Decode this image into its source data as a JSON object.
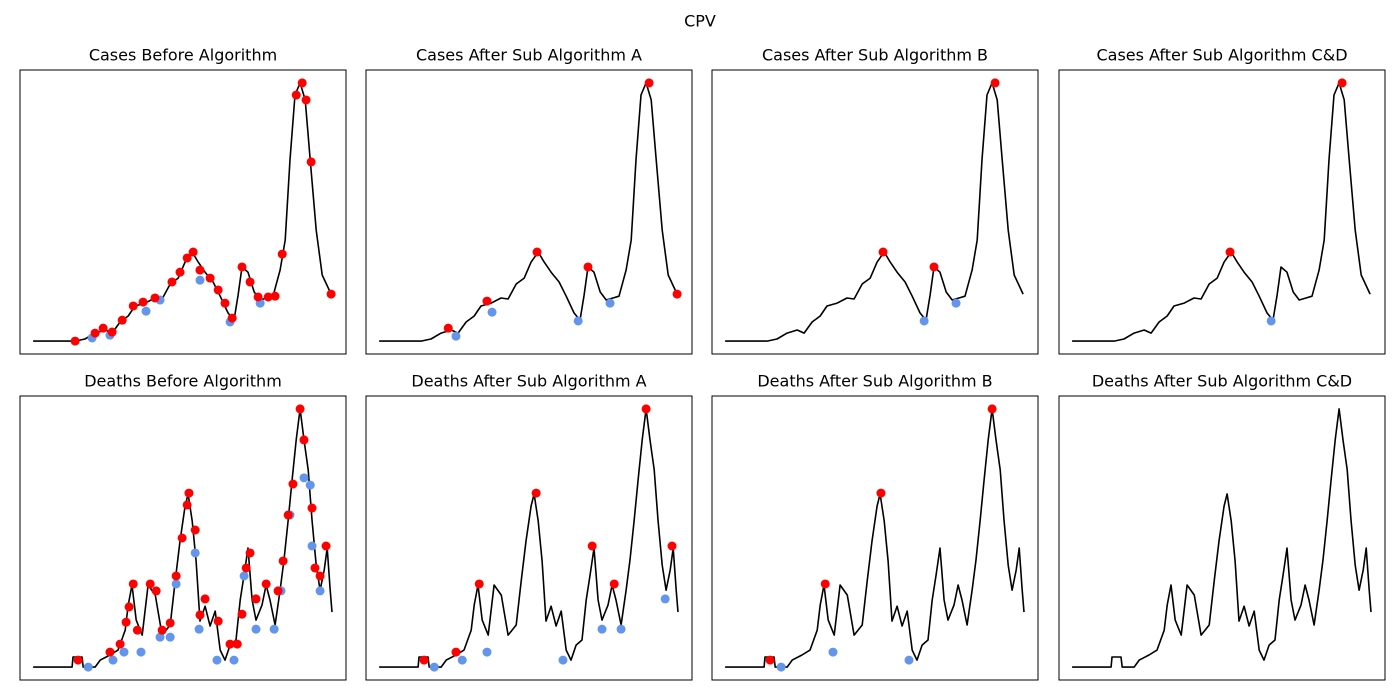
{
  "title": "CPV",
  "chart_data": [
    {
      "type": "line",
      "title": "Cases Before Algorithm",
      "color": "#000000",
      "xlim": [
        -4.4,
        105
      ],
      "ylim": [
        -5,
        105
      ],
      "x": [
        0,
        14.1,
        17.4,
        20.8,
        24.2,
        26.5,
        29.2,
        31.9,
        34.2,
        37.6,
        40.9,
        43.3,
        46,
        48.7,
        51,
        53.4,
        55.4,
        57.7,
        60.4,
        62.8,
        65.4,
        67.4,
        68.8,
        70.1,
        72.1,
        74.2,
        76.2,
        78.5,
        80.5,
        82.9,
        84.6,
        86.2,
        87.9,
        89.6,
        91.3,
        93,
        95,
        97,
        100
      ],
      "values": [
        0,
        0,
        0.8,
        3.1,
        4.3,
        3.1,
        7.4,
        9.7,
        13.6,
        14.7,
        16.7,
        16.3,
        22.1,
        24.4,
        30.6,
        34.5,
        30.6,
        26.7,
        22.9,
        17.4,
        10.9,
        8.1,
        17.8,
        28.7,
        26.7,
        19,
        15.9,
        16.7,
        17.4,
        27.5,
        39.1,
        70.2,
        95.3,
        100,
        93.4,
        70.2,
        43,
        25.6,
        18.2
      ],
      "troughs": {
        "color": "#6495ed",
        "x": [
          19.8,
          25.8,
          37.9,
          42.6,
          56,
          66.1,
          76.2
        ],
        "values": [
          1.2,
          2.3,
          11.6,
          15.9,
          23.6,
          7.4,
          14.7
        ]
      },
      "peaks": {
        "color": "#ff0000",
        "x": [
          14.1,
          20.8,
          23.5,
          26.5,
          29.9,
          33.6,
          36.9,
          40.9,
          46.6,
          49.3,
          51.7,
          53.7,
          56,
          59.4,
          62.1,
          64.4,
          66.8,
          70.1,
          72.8,
          75.5,
          78.9,
          81.2,
          83.6,
          88.3,
          90.3,
          91.6,
          93.3,
          100
        ],
        "values": [
          0,
          3.1,
          5,
          3.5,
          8.1,
          13.6,
          15.1,
          16.7,
          22.9,
          26.7,
          32.2,
          34.5,
          27.5,
          24.4,
          19.8,
          14.7,
          8.9,
          28.7,
          22.9,
          17.1,
          17.1,
          17.4,
          33.7,
          95.3,
          100,
          93.4,
          69.4,
          18.2
        ]
      }
    },
    {
      "type": "line",
      "title": "Cases After Sub Algorithm A",
      "color": "#000000",
      "xlim": [
        -4.4,
        105
      ],
      "ylim": [
        -5,
        105
      ],
      "x": [
        0,
        14.1,
        17.4,
        20.8,
        24.2,
        26.5,
        29.2,
        31.9,
        34.2,
        37.6,
        40.9,
        43.3,
        46,
        48.7,
        51,
        53.4,
        55.4,
        57.7,
        60.4,
        62.8,
        65.4,
        67.4,
        68.8,
        70.1,
        72.1,
        74.2,
        76.2,
        78.5,
        80.5,
        82.9,
        84.6,
        86.2,
        87.9,
        89.6,
        91.3,
        93,
        95,
        97,
        100
      ],
      "values": [
        0,
        0,
        0.8,
        3.1,
        4.3,
        3.1,
        7.4,
        9.7,
        13.6,
        14.7,
        16.7,
        16.3,
        22.1,
        24.4,
        30.6,
        34.5,
        30.6,
        26.7,
        22.9,
        17.4,
        10.9,
        8.1,
        17.8,
        28.7,
        26.7,
        19,
        15.9,
        16.7,
        17.4,
        27.5,
        39.1,
        70.2,
        95.3,
        100,
        93.4,
        70.2,
        43,
        25.6,
        18.2
      ],
      "troughs": {
        "color": "#6495ed",
        "x": [
          25.8,
          37.9,
          66.8,
          77.5
        ],
        "values": [
          1.9,
          11.2,
          7.8,
          14.7
        ]
      },
      "peaks": {
        "color": "#ff0000",
        "x": [
          23.2,
          36.2,
          53,
          70.1,
          90.6,
          100
        ],
        "values": [
          5,
          15.5,
          34.5,
          28.7,
          100,
          18.2
        ]
      }
    },
    {
      "type": "line",
      "title": "Cases After Sub Algorithm B",
      "color": "#000000",
      "xlim": [
        -4.4,
        105
      ],
      "ylim": [
        -5,
        105
      ],
      "x": [
        0,
        14.1,
        17.4,
        20.8,
        24.2,
        26.5,
        29.2,
        31.9,
        34.2,
        37.6,
        40.9,
        43.3,
        46,
        48.7,
        51,
        53.4,
        55.4,
        57.7,
        60.4,
        62.8,
        65.4,
        67.4,
        68.8,
        70.1,
        72.1,
        74.2,
        76.2,
        78.5,
        80.5,
        82.9,
        84.6,
        86.2,
        87.9,
        89.6,
        91.3,
        93,
        95,
        97,
        100
      ],
      "values": [
        0,
        0,
        0.8,
        3.1,
        4.3,
        3.1,
        7.4,
        9.7,
        13.6,
        14.7,
        16.7,
        16.3,
        22.1,
        24.4,
        30.6,
        34.5,
        30.6,
        26.7,
        22.9,
        17.4,
        10.9,
        8.1,
        17.8,
        28.7,
        26.7,
        19,
        15.9,
        16.7,
        17.4,
        27.5,
        39.1,
        70.2,
        95.3,
        100,
        93.4,
        70.2,
        43,
        25.6,
        18.2
      ],
      "troughs": {
        "color": "#6495ed",
        "x": [
          66.8,
          77.5
        ],
        "values": [
          7.8,
          14.7
        ]
      },
      "peaks": {
        "color": "#ff0000",
        "x": [
          53,
          70.1,
          90.6
        ],
        "values": [
          34.5,
          28.7,
          100
        ]
      }
    },
    {
      "type": "line",
      "title": "Cases After Sub Algorithm C&D",
      "color": "#000000",
      "xlim": [
        -4.4,
        105
      ],
      "ylim": [
        -5,
        105
      ],
      "x": [
        0,
        14.1,
        17.4,
        20.8,
        24.2,
        26.5,
        29.2,
        31.9,
        34.2,
        37.6,
        40.9,
        43.3,
        46,
        48.7,
        51,
        53.4,
        55.4,
        57.7,
        60.4,
        62.8,
        65.4,
        67.4,
        68.8,
        70.1,
        72.1,
        74.2,
        76.2,
        78.5,
        80.5,
        82.9,
        84.6,
        86.2,
        87.9,
        89.6,
        91.3,
        93,
        95,
        97,
        100
      ],
      "values": [
        0,
        0,
        0.8,
        3.1,
        4.3,
        3.1,
        7.4,
        9.7,
        13.6,
        14.7,
        16.7,
        16.3,
        22.1,
        24.4,
        30.6,
        34.5,
        30.6,
        26.7,
        22.9,
        17.4,
        10.9,
        8.1,
        17.8,
        28.7,
        26.7,
        19,
        15.9,
        16.7,
        17.4,
        27.5,
        39.1,
        70.2,
        95.3,
        100,
        93.4,
        70.2,
        43,
        25.6,
        18.2
      ],
      "troughs": {
        "color": "#6495ed",
        "x": [
          66.8
        ],
        "values": [
          7.8
        ]
      },
      "peaks": {
        "color": "#ff0000",
        "x": [
          53,
          90.6
        ],
        "values": [
          34.5,
          100
        ]
      }
    },
    {
      "type": "line",
      "title": "Deaths Before Algorithm",
      "color": "#000000",
      "xlim": [
        -4.4,
        105
      ],
      "ylim": [
        -5,
        105
      ],
      "x": [
        0,
        13.1,
        13.4,
        16.4,
        16.8,
        20.8,
        22.5,
        25.8,
        28.5,
        30.9,
        31.9,
        33.2,
        34.6,
        36.6,
        38.6,
        41,
        43.3,
        46,
        47.7,
        49.3,
        51,
        52,
        53.4,
        54.7,
        56,
        57.7,
        59.4,
        61.1,
        62.8,
        64.4,
        66.1,
        68.1,
        69.5,
        70.8,
        72.1,
        73.5,
        74.8,
        76.8,
        78.2,
        79.5,
        81.2,
        82.9,
        84.2,
        85.6,
        86.9,
        88.3,
        89.6,
        90.9,
        92.3,
        93.6,
        95,
        96.3,
        97.7,
        98.7,
        99.7,
        100.3
      ],
      "values": [
        0,
        0,
        3.9,
        3.9,
        0,
        0,
        2.7,
        4.7,
        6.6,
        14.3,
        24,
        31.8,
        18.2,
        12.4,
        31.8,
        27.9,
        12.4,
        16.3,
        33.7,
        48.8,
        62.4,
        67.1,
        56.6,
        41.1,
        17.8,
        23.6,
        15.9,
        21.7,
        6.6,
        2.7,
        8.5,
        10.5,
        26,
        35.7,
        46.1,
        26,
        18.2,
        24,
        31.8,
        26,
        16.3,
        29.8,
        41.5,
        57,
        72.5,
        88,
        100,
        88,
        76.4,
        57,
        39.5,
        29.8,
        37.6,
        46.1,
        29.8,
        21.3
      ],
      "troughs": {
        "color": "#6495ed",
        "x": [
          18.5,
          26.8,
          30.5,
          36.2,
          42.6,
          46,
          48,
          54.4,
          55.7,
          61.7,
          67.4,
          70.8,
          74.8,
          80.9,
          83.2,
          86.2,
          90.9,
          93,
          93.6,
          96.3
        ],
        "values": [
          0,
          2.7,
          5.8,
          5.8,
          11.6,
          11.6,
          32.2,
          44.2,
          14.7,
          2.7,
          2.7,
          35.3,
          14.7,
          14.7,
          29.5,
          58.9,
          73.3,
          70.5,
          46.9,
          29.5
        ]
      },
      "peaks": {
        "color": "#ff0000",
        "x": [
          15.1,
          25.8,
          29.2,
          31.2,
          32.2,
          33.6,
          35,
          39.3,
          41.3,
          43.3,
          46,
          48,
          50,
          51.7,
          52.3,
          54.4,
          56,
          57.7,
          62.1,
          66.1,
          68.5,
          70.1,
          71.5,
          72.8,
          74.8,
          78.2,
          82.2,
          83.9,
          85.6,
          87.2,
          89.6,
          90.9,
          93.6,
          94.6,
          96.3,
          98.3
        ],
        "values": [
          2.7,
          5.8,
          8.9,
          17.4,
          23.3,
          32.2,
          14.3,
          32.2,
          29.5,
          14.3,
          17.1,
          35.3,
          50,
          62.8,
          67.4,
          53.1,
          20.2,
          26.4,
          17.8,
          8.9,
          8.9,
          20.5,
          38.4,
          44.2,
          26.4,
          32.2,
          29.5,
          41.1,
          58.9,
          70.9,
          100,
          88,
          61.6,
          38.4,
          35.3,
          46.9
        ]
      }
    },
    {
      "type": "line",
      "title": "Deaths After Sub Algorithm A",
      "color": "#000000",
      "xlim": [
        -4.4,
        105
      ],
      "ylim": [
        -5,
        105
      ],
      "x": [
        0,
        13.1,
        13.4,
        16.4,
        16.8,
        20.8,
        22.5,
        25.8,
        28.5,
        30.9,
        31.9,
        33.2,
        34.6,
        36.6,
        38.6,
        41,
        43.3,
        46,
        47.7,
        49.3,
        51,
        52,
        53.4,
        54.7,
        56,
        57.7,
        59.4,
        61.1,
        62.8,
        64.4,
        66.1,
        68.1,
        69.5,
        70.8,
        72.1,
        73.5,
        74.8,
        76.8,
        78.2,
        79.5,
        81.2,
        82.9,
        84.2,
        85.6,
        86.9,
        88.3,
        89.6,
        90.9,
        92.3,
        93.6,
        95,
        96.3,
        97.7,
        98.7,
        99.7,
        100.3
      ],
      "values": [
        0,
        0,
        3.9,
        3.9,
        0,
        0,
        2.7,
        4.7,
        6.6,
        14.3,
        24,
        31.8,
        18.2,
        12.4,
        31.8,
        27.9,
        12.4,
        16.3,
        33.7,
        48.8,
        62.4,
        67.1,
        56.6,
        41.1,
        17.8,
        23.6,
        15.9,
        21.7,
        6.6,
        2.7,
        8.5,
        10.5,
        26,
        35.7,
        46.1,
        26,
        18.2,
        24,
        31.8,
        26,
        16.3,
        29.8,
        41.5,
        57,
        72.5,
        88,
        100,
        88,
        76.4,
        57,
        39.5,
        29.8,
        37.6,
        46.1,
        29.8,
        21.3
      ],
      "troughs": {
        "color": "#6495ed",
        "x": [
          18.5,
          27.9,
          36.2,
          61.7,
          74.8,
          81.2,
          96
        ],
        "values": [
          0,
          2.7,
          5.8,
          2.7,
          14.7,
          14.7,
          26.4
        ]
      },
      "peaks": {
        "color": "#ff0000",
        "x": [
          15.1,
          25.8,
          33.6,
          52.7,
          71.5,
          78.9,
          89.6,
          98.3
        ],
        "values": [
          2.7,
          5.8,
          32.2,
          67.4,
          46.9,
          32.2,
          100,
          46.9
        ]
      }
    },
    {
      "type": "line",
      "title": "Deaths After Sub Algorithm B",
      "color": "#000000",
      "xlim": [
        -4.4,
        105
      ],
      "ylim": [
        -5,
        105
      ],
      "x": [
        0,
        13.1,
        13.4,
        16.4,
        16.8,
        20.8,
        22.5,
        25.8,
        28.5,
        30.9,
        31.9,
        33.2,
        34.6,
        36.6,
        38.6,
        41,
        43.3,
        46,
        47.7,
        49.3,
        51,
        52,
        53.4,
        54.7,
        56,
        57.7,
        59.4,
        61.1,
        62.8,
        64.4,
        66.1,
        68.1,
        69.5,
        70.8,
        72.1,
        73.5,
        74.8,
        76.8,
        78.2,
        79.5,
        81.2,
        82.9,
        84.2,
        85.6,
        86.9,
        88.3,
        89.6,
        90.9,
        92.3,
        93.6,
        95,
        96.3,
        97.7,
        98.7,
        99.7,
        100.3
      ],
      "values": [
        0,
        0,
        3.9,
        3.9,
        0,
        0,
        2.7,
        4.7,
        6.6,
        14.3,
        24,
        31.8,
        18.2,
        12.4,
        31.8,
        27.9,
        12.4,
        16.3,
        33.7,
        48.8,
        62.4,
        67.1,
        56.6,
        41.1,
        17.8,
        23.6,
        15.9,
        21.7,
        6.6,
        2.7,
        8.5,
        10.5,
        26,
        35.7,
        46.1,
        26,
        18.2,
        24,
        31.8,
        26,
        16.3,
        29.8,
        41.5,
        57,
        72.5,
        88,
        100,
        88,
        76.4,
        57,
        39.5,
        29.8,
        37.6,
        46.1,
        29.8,
        21.3
      ],
      "troughs": {
        "color": "#6495ed",
        "x": [
          18.8,
          36.2,
          61.7
        ],
        "values": [
          0,
          5.8,
          2.7
        ]
      },
      "peaks": {
        "color": "#ff0000",
        "x": [
          15.1,
          33.6,
          52.3,
          89.6
        ],
        "values": [
          2.7,
          32.2,
          67.4,
          100
        ]
      }
    },
    {
      "type": "line",
      "title": "Deaths After Sub Algorithm C&D",
      "color": "#000000",
      "xlim": [
        -4.4,
        105
      ],
      "ylim": [
        -5,
        105
      ],
      "x": [
        0,
        13.1,
        13.4,
        16.4,
        16.8,
        20.8,
        22.5,
        25.8,
        28.5,
        30.9,
        31.9,
        33.2,
        34.6,
        36.6,
        38.6,
        41,
        43.3,
        46,
        47.7,
        49.3,
        51,
        52,
        53.4,
        54.7,
        56,
        57.7,
        59.4,
        61.1,
        62.8,
        64.4,
        66.1,
        68.1,
        69.5,
        70.8,
        72.1,
        73.5,
        74.8,
        76.8,
        78.2,
        79.5,
        81.2,
        82.9,
        84.2,
        85.6,
        86.9,
        88.3,
        89.6,
        90.9,
        92.3,
        93.6,
        95,
        96.3,
        97.7,
        98.7,
        99.7,
        100.3
      ],
      "values": [
        0,
        0,
        3.9,
        3.9,
        0,
        0,
        2.7,
        4.7,
        6.6,
        14.3,
        24,
        31.8,
        18.2,
        12.4,
        31.8,
        27.9,
        12.4,
        16.3,
        33.7,
        48.8,
        62.4,
        67.1,
        56.6,
        41.1,
        17.8,
        23.6,
        15.9,
        21.7,
        6.6,
        2.7,
        8.5,
        10.5,
        26,
        35.7,
        46.1,
        26,
        18.2,
        24,
        31.8,
        26,
        16.3,
        29.8,
        41.5,
        57,
        72.5,
        88,
        100,
        88,
        76.4,
        57,
        39.5,
        29.8,
        37.6,
        46.1,
        29.8,
        21.3
      ]
    }
  ]
}
